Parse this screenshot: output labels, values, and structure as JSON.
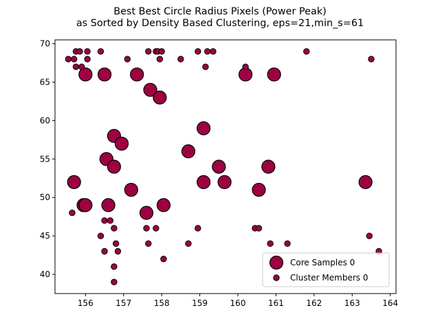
{
  "chart_data": {
    "type": "scatter",
    "title_line1": "Best Best Circle Radius Pixels (Power Peak)",
    "title_line2": "as Sorted by Density Based Clustering, eps=21,min_s=61",
    "xlabel": "",
    "ylabel": "",
    "xlim": [
      155.2,
      164.15
    ],
    "ylim": [
      37.5,
      70.5
    ],
    "xticks": [
      156,
      157,
      158,
      159,
      160,
      161,
      162,
      163,
      164
    ],
    "yticks": [
      40,
      45,
      50,
      55,
      60,
      65,
      70
    ],
    "grid": false,
    "legend_position": "lower-right",
    "color": "#9e0142",
    "edge_color": "#000000",
    "series": [
      {
        "name": "Core Samples 0",
        "marker": "large-circle",
        "points": [
          [
            156.0,
            66
          ],
          [
            156.5,
            66
          ],
          [
            157.35,
            66
          ],
          [
            157.7,
            64
          ],
          [
            157.95,
            63
          ],
          [
            160.2,
            66
          ],
          [
            160.95,
            66
          ],
          [
            156.75,
            58
          ],
          [
            156.95,
            57
          ],
          [
            159.1,
            59
          ],
          [
            156.55,
            55
          ],
          [
            156.75,
            54
          ],
          [
            158.7,
            56
          ],
          [
            159.5,
            54
          ],
          [
            160.8,
            54
          ],
          [
            155.7,
            52
          ],
          [
            157.2,
            51
          ],
          [
            159.1,
            52
          ],
          [
            159.65,
            52
          ],
          [
            160.55,
            51
          ],
          [
            163.35,
            52
          ],
          [
            155.95,
            49
          ],
          [
            156.0,
            49
          ],
          [
            156.6,
            49
          ],
          [
            157.6,
            48
          ],
          [
            158.05,
            49
          ]
        ]
      },
      {
        "name": "Cluster Members 0",
        "marker": "small-circle",
        "points": [
          [
            155.55,
            68
          ],
          [
            155.7,
            68
          ],
          [
            155.75,
            69
          ],
          [
            155.85,
            69
          ],
          [
            155.9,
            67
          ],
          [
            155.75,
            67
          ],
          [
            156.05,
            68
          ],
          [
            156.05,
            69
          ],
          [
            156.4,
            69
          ],
          [
            157.1,
            68
          ],
          [
            157.65,
            69
          ],
          [
            157.85,
            69
          ],
          [
            157.9,
            69
          ],
          [
            158.0,
            69
          ],
          [
            157.95,
            68
          ],
          [
            158.5,
            68
          ],
          [
            158.95,
            69
          ],
          [
            159.15,
            67
          ],
          [
            159.2,
            69
          ],
          [
            159.35,
            69
          ],
          [
            160.2,
            67
          ],
          [
            161.8,
            69
          ],
          [
            163.5,
            68
          ],
          [
            155.65,
            48
          ],
          [
            156.4,
            45
          ],
          [
            156.5,
            43
          ],
          [
            156.5,
            47
          ],
          [
            156.65,
            47
          ],
          [
            156.75,
            46
          ],
          [
            156.8,
            44
          ],
          [
            156.85,
            43
          ],
          [
            156.75,
            41
          ],
          [
            156.75,
            39
          ],
          [
            157.6,
            46
          ],
          [
            157.65,
            44
          ],
          [
            157.85,
            46
          ],
          [
            158.05,
            42
          ],
          [
            158.7,
            44
          ],
          [
            158.95,
            46
          ],
          [
            160.45,
            46
          ],
          [
            160.55,
            46
          ],
          [
            160.85,
            44
          ],
          [
            161.3,
            44
          ],
          [
            163.45,
            45
          ],
          [
            163.7,
            43
          ]
        ]
      }
    ]
  }
}
